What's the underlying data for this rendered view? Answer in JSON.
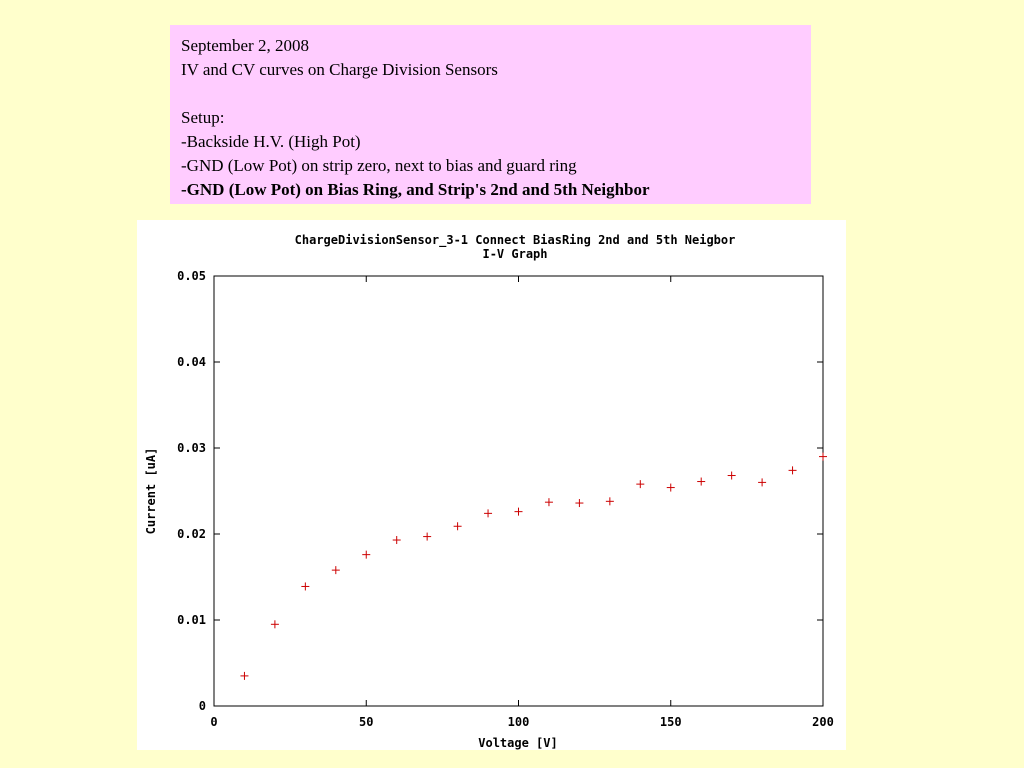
{
  "slide": {
    "date": "September 2, 2008",
    "title": "IV and CV curves on Charge Division Sensors",
    "setup_label": "Setup:",
    "setup_items": [
      "-Backside H.V. (High Pot)",
      "-GND (Low Pot) on strip zero, next to bias and guard ring",
      "-GND (Low Pot) on Bias Ring, and Strip's 2nd and 5th Neighbor"
    ]
  },
  "colors": {
    "background": "#ffffcc",
    "info_box": "#ffccff",
    "series": "#cc0000"
  },
  "chart_data": {
    "type": "scatter",
    "title": "ChargeDivisionSensor_3-1 Connect BiasRing 2nd and 5th Neigbor",
    "subtitle": "I-V Graph",
    "xlabel": "Voltage [V]",
    "ylabel": "Current [uA]",
    "xlim": [
      0,
      200
    ],
    "ylim": [
      0,
      0.05
    ],
    "xticks": [
      "0",
      "50",
      "100",
      "150",
      "200"
    ],
    "yticks": [
      "0",
      "0.01",
      "0.02",
      "0.03",
      "0.04",
      "0.05"
    ],
    "grid": false,
    "marker": "plus",
    "series": [
      {
        "x": [
          10,
          20,
          30,
          40,
          50,
          60,
          70,
          80,
          90,
          100,
          110,
          120,
          130,
          140,
          150,
          160,
          170,
          180,
          190,
          200
        ],
        "y": [
          0.0035,
          0.0095,
          0.0139,
          0.0158,
          0.0176,
          0.0193,
          0.0197,
          0.0209,
          0.0224,
          0.0226,
          0.0237,
          0.0236,
          0.0238,
          0.0258,
          0.0254,
          0.0261,
          0.0268,
          0.026,
          0.0274,
          0.029
        ]
      }
    ]
  }
}
